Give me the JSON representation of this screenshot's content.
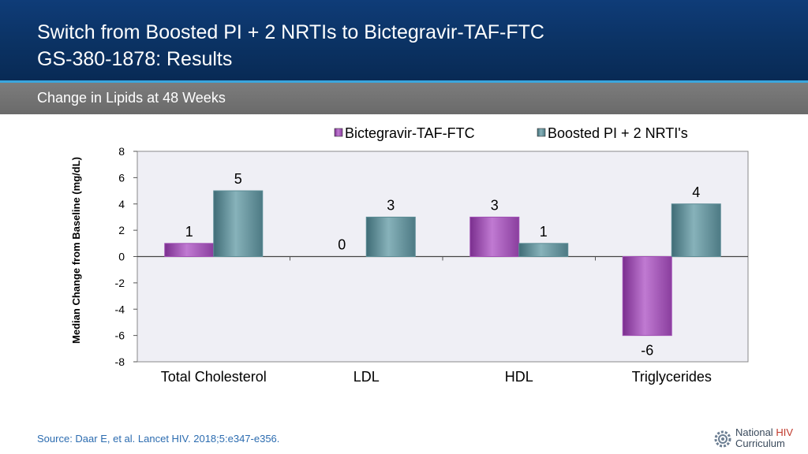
{
  "header": {
    "title_line1": "Switch from Boosted PI + 2 NRTIs to Bictegravir-TAF-FTC",
    "title_line2": "GS-380-1878: Results",
    "subtitle": "Change in Lipids at 48 Weeks"
  },
  "colors": {
    "series1": "#a050b4",
    "series2": "#5b8c95",
    "plot_bg": "#efeff5"
  },
  "chart_data": {
    "type": "bar",
    "title": "Change in Lipids at 48 Weeks",
    "xlabel": "",
    "ylabel": "Median Change from Baseline (mg/dL)",
    "ylim": [
      -8,
      8
    ],
    "yticks": [
      8,
      6,
      4,
      2,
      0,
      -2,
      -4,
      -6,
      -8
    ],
    "categories": [
      "Total Cholesterol",
      "LDL",
      "HDL",
      "Triglycerides"
    ],
    "series": [
      {
        "name": "Bictegravir-TAF-FTC",
        "values": [
          1,
          0,
          3,
          -6
        ]
      },
      {
        "name": "Boosted PI + 2 NRTI's",
        "values": [
          5,
          3,
          1,
          4
        ]
      }
    ],
    "legend_position": "top-right",
    "grid": false
  },
  "footer": {
    "source": "Source: Daar E, et al. Lancet HIV. 2018;5:e347-e356.",
    "logo_line1a": "National ",
    "logo_line1b": "HIV",
    "logo_line2": "Curriculum"
  }
}
